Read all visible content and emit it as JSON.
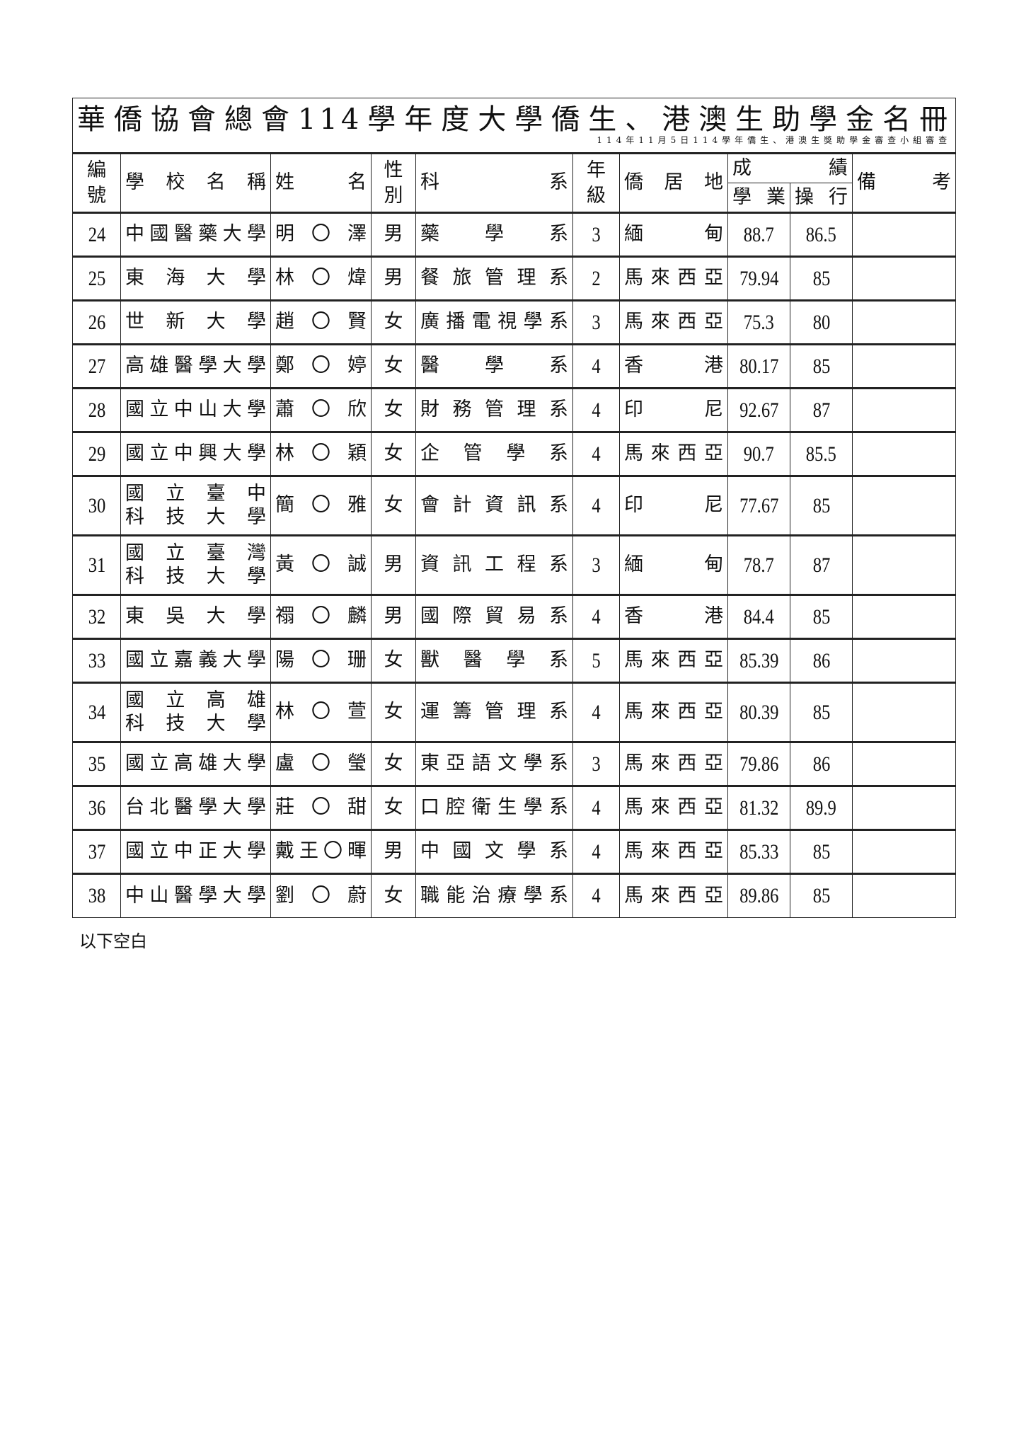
{
  "title": "華僑協會總會114學年度大學僑生、港澳生助學金名冊",
  "subtitle": "114年11月5日114學年僑生、港澳生獎助學金審查小組審查",
  "headers": {
    "no": [
      "編",
      "號"
    ],
    "school": "學校名稱",
    "name": "姓名",
    "gender": [
      "性",
      "別"
    ],
    "dept": "科系",
    "year": [
      "年",
      "級"
    ],
    "residence": "僑居地",
    "grades": "成績",
    "academic": "學業",
    "conduct": "操行",
    "remarks": "備考"
  },
  "rows": [
    {
      "no": "24",
      "school_lines": [
        "中國醫藥大學"
      ],
      "name": "明〇澤",
      "gender": "男",
      "dept": "藥學系",
      "year": "3",
      "residence": "緬甸",
      "academic": "88.7",
      "conduct": "86.5",
      "remarks": ""
    },
    {
      "no": "25",
      "school_lines": [
        "東海大學"
      ],
      "name": "林〇煒",
      "gender": "男",
      "dept": "餐旅管理系",
      "year": "2",
      "residence": "馬來西亞",
      "academic": "79.94",
      "conduct": "85",
      "remarks": ""
    },
    {
      "no": "26",
      "school_lines": [
        "世新大學"
      ],
      "name": "趙〇賢",
      "gender": "女",
      "dept": "廣播電視學系",
      "year": "3",
      "residence": "馬來西亞",
      "academic": "75.3",
      "conduct": "80",
      "remarks": ""
    },
    {
      "no": "27",
      "school_lines": [
        "高雄醫學大學"
      ],
      "name": "鄭〇婷",
      "gender": "女",
      "dept": "醫學系",
      "year": "4",
      "residence": "香港",
      "academic": "80.17",
      "conduct": "85",
      "remarks": ""
    },
    {
      "no": "28",
      "school_lines": [
        "國立中山大學"
      ],
      "name": "蕭〇欣",
      "gender": "女",
      "dept": "財務管理系",
      "year": "4",
      "residence": "印尼",
      "academic": "92.67",
      "conduct": "87",
      "remarks": ""
    },
    {
      "no": "29",
      "school_lines": [
        "國立中興大學"
      ],
      "name": "林〇穎",
      "gender": "女",
      "dept": "企管學系",
      "year": "4",
      "residence": "馬來西亞",
      "academic": "90.7",
      "conduct": "85.5",
      "remarks": ""
    },
    {
      "no": "30",
      "school_lines": [
        "國立臺中",
        "科技大學"
      ],
      "name": "簡〇雅",
      "gender": "女",
      "dept": "會計資訊系",
      "year": "4",
      "residence": "印尼",
      "academic": "77.67",
      "conduct": "85",
      "remarks": ""
    },
    {
      "no": "31",
      "school_lines": [
        "國立臺灣",
        "科技大學"
      ],
      "name": "黃〇誠",
      "gender": "男",
      "dept": "資訊工程系",
      "year": "3",
      "residence": "緬甸",
      "academic": "78.7",
      "conduct": "87",
      "remarks": ""
    },
    {
      "no": "32",
      "school_lines": [
        "東吳大學"
      ],
      "name": "禤〇麟",
      "gender": "男",
      "dept": "國際貿易系",
      "year": "4",
      "residence": "香港",
      "academic": "84.4",
      "conduct": "85",
      "remarks": ""
    },
    {
      "no": "33",
      "school_lines": [
        "國立嘉義大學"
      ],
      "name": "陽〇珊",
      "gender": "女",
      "dept": "獸醫學系",
      "year": "5",
      "residence": "馬來西亞",
      "academic": "85.39",
      "conduct": "86",
      "remarks": ""
    },
    {
      "no": "34",
      "school_lines": [
        "國立高雄",
        "科技大學"
      ],
      "name": "林〇萱",
      "gender": "女",
      "dept": "運籌管理系",
      "year": "4",
      "residence": "馬來西亞",
      "academic": "80.39",
      "conduct": "85",
      "remarks": ""
    },
    {
      "no": "35",
      "school_lines": [
        "國立高雄大學"
      ],
      "name": "盧〇瑩",
      "gender": "女",
      "dept": "東亞語文學系",
      "year": "3",
      "residence": "馬來西亞",
      "academic": "79.86",
      "conduct": "86",
      "remarks": ""
    },
    {
      "no": "36",
      "school_lines": [
        "台北醫學大學"
      ],
      "name": "莊〇甜",
      "gender": "女",
      "dept": "口腔衛生學系",
      "year": "4",
      "residence": "馬來西亞",
      "academic": "81.32",
      "conduct": "89.9",
      "remarks": ""
    },
    {
      "no": "37",
      "school_lines": [
        "國立中正大學"
      ],
      "name": "戴王〇暉",
      "gender": "男",
      "dept": "中國文學系",
      "year": "4",
      "residence": "馬來西亞",
      "academic": "85.33",
      "conduct": "85",
      "remarks": ""
    },
    {
      "no": "38",
      "school_lines": [
        "中山醫學大學"
      ],
      "name": "劉〇蔚",
      "gender": "女",
      "dept": "職能治療學系",
      "year": "4",
      "residence": "馬來西亞",
      "academic": "89.86",
      "conduct": "85",
      "remarks": ""
    }
  ],
  "footer": "以下空白"
}
